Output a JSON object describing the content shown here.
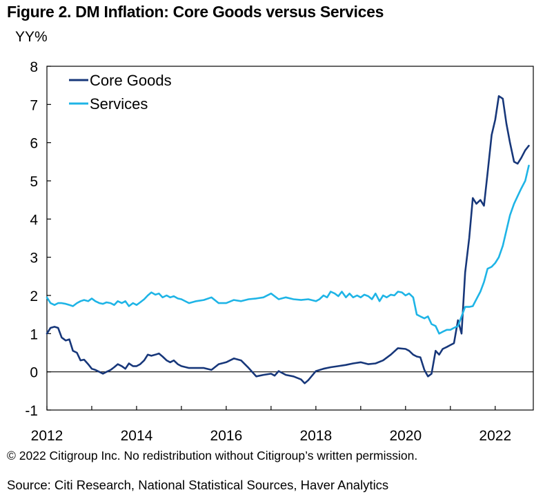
{
  "title": "Figure 2. DM Inflation: Core Goods versus Services",
  "copyright": "© 2022 Citigroup Inc. No redistribution without Citigroup’s written permission.",
  "source": "Source: Citi Research, National Statistical Sources, Haver Analytics",
  "chart_data": {
    "type": "line",
    "ylabel": "YY%",
    "xlabel": "",
    "xlim": [
      2012,
      2022.85
    ],
    "ylim": [
      -1,
      8
    ],
    "xticks": [
      "2012",
      "2014",
      "2016",
      "2018",
      "2020",
      "2022"
    ],
    "yticks": [
      "-1",
      "0",
      "1",
      "2",
      "3",
      "4",
      "5",
      "6",
      "7",
      "8"
    ],
    "grid": false,
    "zero_line": true,
    "legend_position": "top-left",
    "series": [
      {
        "name": "Core Goods",
        "color": "#17377a",
        "x": [
          2012.0,
          2012.08,
          2012.17,
          2012.25,
          2012.33,
          2012.42,
          2012.5,
          2012.58,
          2012.67,
          2012.75,
          2012.83,
          2012.92,
          2013.0,
          2013.08,
          2013.17,
          2013.25,
          2013.33,
          2013.42,
          2013.5,
          2013.58,
          2013.67,
          2013.75,
          2013.83,
          2013.92,
          2014.0,
          2014.08,
          2014.17,
          2014.25,
          2014.33,
          2014.42,
          2014.5,
          2014.58,
          2014.67,
          2014.75,
          2014.83,
          2014.92,
          2015.0,
          2015.17,
          2015.33,
          2015.5,
          2015.67,
          2015.83,
          2016.0,
          2016.17,
          2016.33,
          2016.5,
          2016.67,
          2016.83,
          2017.0,
          2017.08,
          2017.17,
          2017.33,
          2017.5,
          2017.67,
          2017.75,
          2017.83,
          2018.0,
          2018.17,
          2018.33,
          2018.5,
          2018.67,
          2018.83,
          2019.0,
          2019.17,
          2019.33,
          2019.5,
          2019.67,
          2019.83,
          2020.0,
          2020.08,
          2020.17,
          2020.25,
          2020.33,
          2020.42,
          2020.5,
          2020.58,
          2020.67,
          2020.75,
          2020.83,
          2020.92,
          2021.0,
          2021.08,
          2021.17,
          2021.25,
          2021.33,
          2021.42,
          2021.5,
          2021.58,
          2021.67,
          2021.75,
          2021.83,
          2021.92,
          2022.0,
          2022.08,
          2022.17,
          2022.25,
          2022.33,
          2022.42,
          2022.5,
          2022.58,
          2022.67,
          2022.75
        ],
        "values": [
          1.0,
          1.15,
          1.18,
          1.15,
          0.9,
          0.82,
          0.85,
          0.55,
          0.5,
          0.3,
          0.32,
          0.2,
          0.08,
          0.05,
          0.0,
          -0.05,
          0.0,
          0.05,
          0.12,
          0.2,
          0.15,
          0.08,
          0.22,
          0.15,
          0.15,
          0.2,
          0.3,
          0.45,
          0.42,
          0.45,
          0.48,
          0.4,
          0.3,
          0.25,
          0.3,
          0.2,
          0.15,
          0.1,
          0.1,
          0.1,
          0.05,
          0.2,
          0.25,
          0.35,
          0.3,
          0.1,
          -0.12,
          -0.08,
          -0.05,
          -0.1,
          0.02,
          -0.08,
          -0.12,
          -0.2,
          -0.3,
          -0.22,
          0.02,
          0.08,
          0.12,
          0.15,
          0.18,
          0.22,
          0.25,
          0.2,
          0.22,
          0.3,
          0.45,
          0.62,
          0.6,
          0.55,
          0.45,
          0.4,
          0.38,
          0.05,
          -0.12,
          -0.05,
          0.55,
          0.45,
          0.6,
          0.65,
          0.7,
          0.75,
          1.35,
          1.0,
          2.6,
          3.5,
          4.55,
          4.4,
          4.5,
          4.35,
          5.2,
          6.2,
          6.6,
          7.22,
          7.15,
          6.5,
          6.0,
          5.5,
          5.45,
          5.6,
          5.8,
          5.92
        ]
      },
      {
        "name": "Services",
        "color": "#1eb4e6",
        "x": [
          2012.0,
          2012.08,
          2012.17,
          2012.25,
          2012.33,
          2012.42,
          2012.5,
          2012.58,
          2012.67,
          2012.75,
          2012.83,
          2012.92,
          2013.0,
          2013.08,
          2013.17,
          2013.25,
          2013.33,
          2013.42,
          2013.5,
          2013.58,
          2013.67,
          2013.75,
          2013.83,
          2013.92,
          2014.0,
          2014.08,
          2014.17,
          2014.25,
          2014.33,
          2014.42,
          2014.5,
          2014.58,
          2014.67,
          2014.75,
          2014.83,
          2014.92,
          2015.0,
          2015.17,
          2015.33,
          2015.5,
          2015.67,
          2015.83,
          2016.0,
          2016.17,
          2016.33,
          2016.5,
          2016.67,
          2016.83,
          2017.0,
          2017.17,
          2017.33,
          2017.5,
          2017.67,
          2017.83,
          2018.0,
          2018.08,
          2018.17,
          2018.25,
          2018.33,
          2018.42,
          2018.5,
          2018.58,
          2018.67,
          2018.75,
          2018.83,
          2018.92,
          2019.0,
          2019.08,
          2019.17,
          2019.25,
          2019.33,
          2019.42,
          2019.5,
          2019.58,
          2019.67,
          2019.75,
          2019.83,
          2019.92,
          2020.0,
          2020.08,
          2020.17,
          2020.25,
          2020.33,
          2020.42,
          2020.5,
          2020.58,
          2020.67,
          2020.75,
          2020.83,
          2020.92,
          2021.0,
          2021.08,
          2021.17,
          2021.25,
          2021.33,
          2021.42,
          2021.5,
          2021.58,
          2021.67,
          2021.75,
          2021.83,
          2021.92,
          2022.0,
          2022.08,
          2022.17,
          2022.25,
          2022.33,
          2022.42,
          2022.5,
          2022.58,
          2022.67,
          2022.75
        ],
        "values": [
          1.95,
          1.8,
          1.75,
          1.8,
          1.8,
          1.78,
          1.75,
          1.72,
          1.8,
          1.85,
          1.88,
          1.85,
          1.92,
          1.85,
          1.8,
          1.78,
          1.82,
          1.8,
          1.75,
          1.85,
          1.8,
          1.85,
          1.72,
          1.8,
          1.75,
          1.82,
          1.9,
          2.0,
          2.08,
          2.02,
          2.05,
          1.95,
          2.0,
          1.95,
          1.98,
          1.92,
          1.9,
          1.8,
          1.85,
          1.88,
          1.95,
          1.8,
          1.8,
          1.88,
          1.85,
          1.9,
          1.92,
          1.95,
          2.05,
          1.9,
          1.95,
          1.9,
          1.88,
          1.9,
          1.85,
          1.9,
          2.0,
          1.95,
          2.1,
          2.05,
          1.98,
          2.1,
          1.95,
          2.05,
          1.95,
          2.0,
          1.95,
          2.02,
          1.98,
          1.9,
          2.05,
          1.85,
          2.0,
          1.95,
          2.02,
          2.0,
          2.1,
          2.08,
          2.0,
          2.05,
          1.95,
          1.5,
          1.45,
          1.4,
          1.45,
          1.25,
          1.2,
          1.0,
          1.05,
          1.1,
          1.1,
          1.15,
          1.2,
          1.45,
          1.7,
          1.7,
          1.72,
          1.9,
          2.1,
          2.35,
          2.7,
          2.75,
          2.85,
          3.0,
          3.3,
          3.7,
          4.1,
          4.4,
          4.6,
          4.8,
          5.0,
          5.4
        ]
      }
    ]
  }
}
